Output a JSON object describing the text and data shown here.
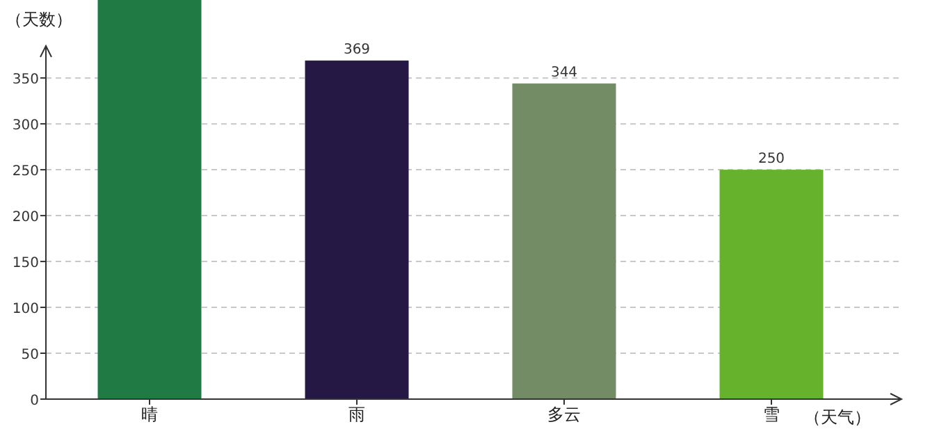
{
  "chart_data": {
    "type": "bar",
    "ylabel": "（天数）",
    "xlabel": "（天气）",
    "categories": [
      "晴",
      "雨",
      "多云",
      "雪"
    ],
    "values": [
      435,
      369,
      344,
      250
    ],
    "colors": [
      "#1f7a44",
      "#261845",
      "#738c65",
      "#67b22c"
    ],
    "value_labels": [
      null,
      "369",
      "344",
      "250"
    ],
    "ylim": [
      0,
      435
    ],
    "yticks": [
      0,
      50,
      100,
      150,
      200,
      250,
      300,
      350
    ],
    "grid": "y"
  }
}
